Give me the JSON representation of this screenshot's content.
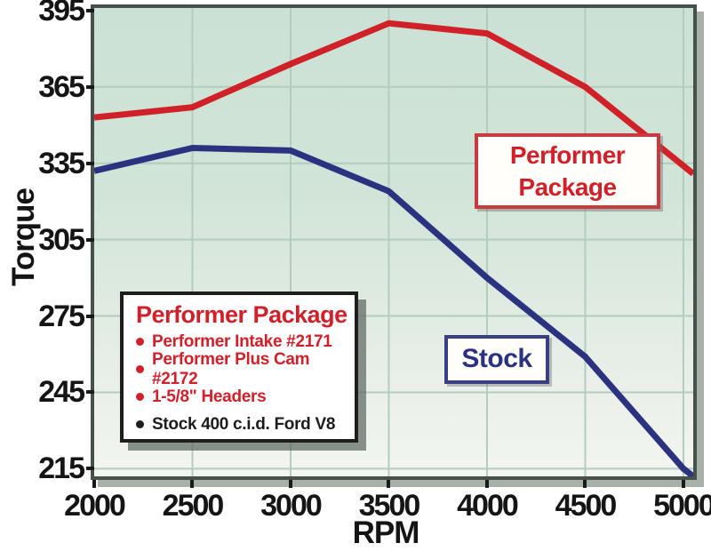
{
  "chart_data": {
    "type": "line",
    "title": "",
    "xlabel": "RPM",
    "ylabel": "Torque",
    "x": [
      2000,
      2500,
      3000,
      3500,
      4000,
      4500,
      5000
    ],
    "series": [
      {
        "name": "Performer Package",
        "color": "#cf2127",
        "values": [
          353,
          357,
          374,
          390,
          386,
          365,
          334
        ]
      },
      {
        "name": "Stock",
        "color": "#2b3381",
        "values": [
          332,
          341,
          340,
          324,
          290,
          259,
          215
        ]
      }
    ],
    "xticks": [
      2000,
      2500,
      3000,
      3500,
      4000,
      4500,
      5000
    ],
    "yticks": [
      215,
      245,
      275,
      305,
      335,
      365,
      395
    ],
    "xlim": [
      2000,
      5050
    ],
    "ylim": [
      212,
      396
    ],
    "grid": true,
    "legend_position": "inside lower-left box; series labeled by callout boxes on chart",
    "lines_extend_to_plot_edges": true
  },
  "callouts": {
    "performer": {
      "line1": "Performer",
      "line2": "Package"
    },
    "stock": {
      "label": "Stock"
    }
  },
  "legend_box": {
    "title": "Performer Package",
    "items": [
      {
        "text": "Performer Intake #2171",
        "color": "#d2202a"
      },
      {
        "text": "Performer Plus Cam #2172",
        "color": "#d2202a"
      },
      {
        "text": "1-5/8\" Headers",
        "color": "#d2202a"
      },
      {
        "text": "Stock 400 c.i.d. Ford V8",
        "color": "#1d1d1b"
      }
    ]
  },
  "colors": {
    "performer_line": "#cf2127",
    "stock_line": "#2b3381",
    "grid": "#b3ccbe",
    "plot_border": "#47514b",
    "plot_bg_top": "#cbe1d5",
    "plot_bg_bottom": "#f3f5f0",
    "tick_text": "#151515"
  }
}
